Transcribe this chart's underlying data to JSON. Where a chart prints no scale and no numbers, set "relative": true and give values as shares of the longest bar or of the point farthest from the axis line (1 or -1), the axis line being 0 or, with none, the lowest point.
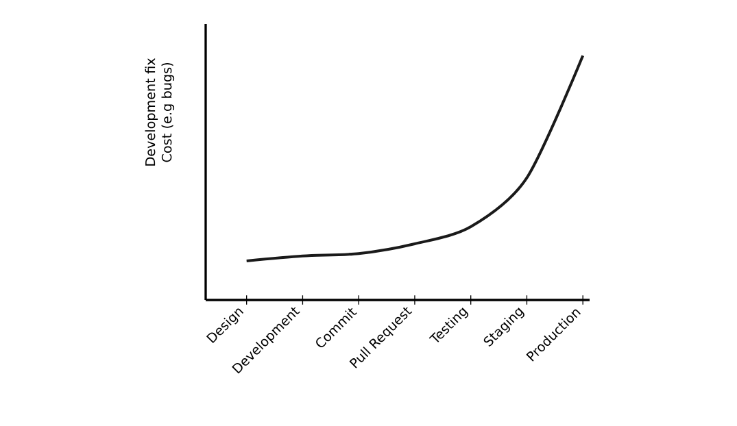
{
  "chart_data": {
    "type": "line",
    "relative": true,
    "ylabel": "Development fix Cost (e.g bugs)",
    "categories": [
      "Design",
      "Development",
      "Commit",
      "Pull Request",
      "Testing",
      "Staging",
      "Production"
    ],
    "values": [
      0.16,
      0.18,
      0.19,
      0.23,
      0.3,
      0.5,
      1.0
    ],
    "color": "#1a1a1a",
    "grid": false,
    "marker": "none",
    "line_style": "solid"
  }
}
